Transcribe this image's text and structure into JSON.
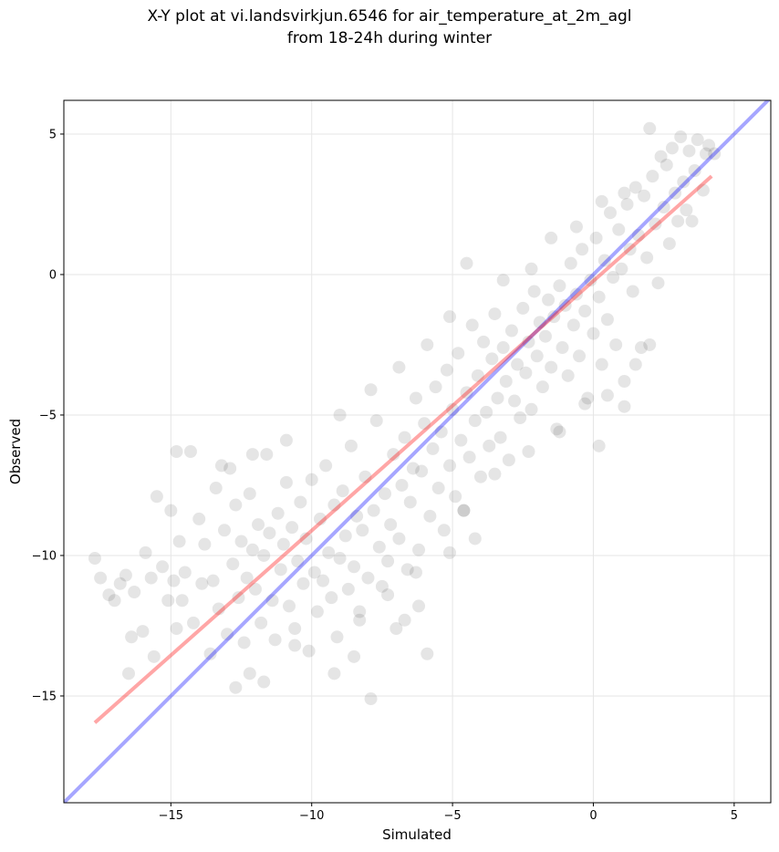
{
  "chart_data": {
    "type": "scatter",
    "title": "X-Y plot at vi.landsvirkjun.6546 for air_temperature_at_2m_agl",
    "subtitle": "from 18-24h during winter",
    "xlabel": "Simulated",
    "ylabel": "Observed",
    "xlim": [
      -18.8,
      6.3
    ],
    "ylim": [
      -18.8,
      6.2
    ],
    "xticks": [
      -15,
      -10,
      -5,
      0,
      5
    ],
    "yticks": [
      -15,
      -10,
      -5,
      0,
      5
    ],
    "xtick_labels": [
      "−15",
      "−10",
      "−5",
      "0",
      "5"
    ],
    "ytick_labels": [
      "−15",
      "−10",
      "−5",
      "0",
      "5"
    ],
    "grid": true,
    "marker_color": "#000000",
    "marker_alpha": 0.1,
    "reference_lines": [
      {
        "kind": "identity",
        "color": "#0000ff",
        "alpha": 0.35,
        "x": [
          -18.8,
          6.3
        ],
        "y": [
          -18.8,
          6.3
        ]
      },
      {
        "kind": "regression",
        "color": "#ff0000",
        "alpha": 0.35,
        "x": [
          -17.7,
          4.2
        ],
        "y": [
          -15.95,
          3.5
        ]
      }
    ],
    "points": [
      [
        -17.7,
        -10.1
      ],
      [
        -17.5,
        -10.8
      ],
      [
        -17.2,
        -11.4
      ],
      [
        -17.0,
        -11.6
      ],
      [
        -16.8,
        -11.0
      ],
      [
        -16.6,
        -10.7
      ],
      [
        -16.5,
        -14.2
      ],
      [
        -16.4,
        -12.9
      ],
      [
        -16.3,
        -11.3
      ],
      [
        -16.0,
        -12.7
      ],
      [
        -15.9,
        -9.9
      ],
      [
        -15.7,
        -10.8
      ],
      [
        -15.6,
        -13.6
      ],
      [
        -15.5,
        -7.9
      ],
      [
        -15.3,
        -10.4
      ],
      [
        -15.1,
        -11.6
      ],
      [
        -15.0,
        -8.4
      ],
      [
        -14.9,
        -10.9
      ],
      [
        -14.8,
        -12.6
      ],
      [
        -14.7,
        -9.5
      ],
      [
        -14.6,
        -11.6
      ],
      [
        -14.5,
        -10.6
      ],
      [
        -14.3,
        -6.3
      ],
      [
        -14.2,
        -12.4
      ],
      [
        -14.0,
        -8.7
      ],
      [
        -13.9,
        -11.0
      ],
      [
        -13.8,
        -9.6
      ],
      [
        -13.6,
        -13.5
      ],
      [
        -13.5,
        -10.9
      ],
      [
        -13.4,
        -7.6
      ],
      [
        -13.3,
        -11.9
      ],
      [
        -13.1,
        -9.1
      ],
      [
        -13.0,
        -12.8
      ],
      [
        -12.9,
        -6.9
      ],
      [
        -12.8,
        -10.3
      ],
      [
        -12.7,
        -8.2
      ],
      [
        -12.6,
        -11.5
      ],
      [
        -12.5,
        -9.5
      ],
      [
        -12.4,
        -13.1
      ],
      [
        -12.3,
        -10.8
      ],
      [
        -12.2,
        -7.8
      ],
      [
        -12.1,
        -9.8
      ],
      [
        -12.0,
        -11.2
      ],
      [
        -11.9,
        -8.9
      ],
      [
        -11.8,
        -12.4
      ],
      [
        -11.7,
        -10.0
      ],
      [
        -11.6,
        -6.4
      ],
      [
        -11.5,
        -9.2
      ],
      [
        -11.4,
        -11.6
      ],
      [
        -11.3,
        -13.0
      ],
      [
        -11.2,
        -8.5
      ],
      [
        -11.1,
        -10.5
      ],
      [
        -11.0,
        -9.6
      ],
      [
        -10.9,
        -7.4
      ],
      [
        -10.8,
        -11.8
      ],
      [
        -10.7,
        -9.0
      ],
      [
        -10.6,
        -12.6
      ],
      [
        -10.5,
        -10.2
      ],
      [
        -10.4,
        -8.1
      ],
      [
        -10.3,
        -11.0
      ],
      [
        -10.2,
        -9.4
      ],
      [
        -10.1,
        -13.4
      ],
      [
        -10.0,
        -7.3
      ],
      [
        -9.9,
        -10.6
      ],
      [
        -9.8,
        -12.0
      ],
      [
        -9.7,
        -8.7
      ],
      [
        -9.6,
        -10.9
      ],
      [
        -9.5,
        -6.8
      ],
      [
        -9.4,
        -9.9
      ],
      [
        -9.3,
        -11.5
      ],
      [
        -9.2,
        -8.2
      ],
      [
        -9.1,
        -12.9
      ],
      [
        -9.0,
        -10.1
      ],
      [
        -8.9,
        -7.7
      ],
      [
        -8.8,
        -9.3
      ],
      [
        -8.7,
        -11.2
      ],
      [
        -8.6,
        -6.1
      ],
      [
        -8.5,
        -10.4
      ],
      [
        -8.4,
        -8.6
      ],
      [
        -8.3,
        -12.3
      ],
      [
        -8.2,
        -9.1
      ],
      [
        -8.1,
        -7.2
      ],
      [
        -8.0,
        -10.8
      ],
      [
        -7.9,
        -15.1
      ],
      [
        -7.8,
        -8.4
      ],
      [
        -7.7,
        -5.2
      ],
      [
        -7.6,
        -9.7
      ],
      [
        -7.5,
        -11.1
      ],
      [
        -7.4,
        -7.8
      ],
      [
        -7.3,
        -10.2
      ],
      [
        -7.2,
        -8.9
      ],
      [
        -7.1,
        -6.4
      ],
      [
        -7.0,
        -12.6
      ],
      [
        -6.9,
        -9.4
      ],
      [
        -6.8,
        -7.5
      ],
      [
        -6.7,
        -5.8
      ],
      [
        -6.6,
        -10.5
      ],
      [
        -6.5,
        -8.1
      ],
      [
        -6.4,
        -6.9
      ],
      [
        -6.3,
        -4.4
      ],
      [
        -6.2,
        -9.8
      ],
      [
        -6.1,
        -7.0
      ],
      [
        -6.0,
        -5.3
      ],
      [
        -5.9,
        -13.5
      ],
      [
        -5.8,
        -8.6
      ],
      [
        -5.7,
        -6.2
      ],
      [
        -5.6,
        -4.0
      ],
      [
        -5.5,
        -7.6
      ],
      [
        -5.4,
        -5.6
      ],
      [
        -5.3,
        -9.1
      ],
      [
        -5.2,
        -3.4
      ],
      [
        -5.1,
        -6.8
      ],
      [
        -5.0,
        -4.8
      ],
      [
        -4.9,
        -7.9
      ],
      [
        -4.8,
        -2.8
      ],
      [
        -4.7,
        -5.9
      ],
      [
        -4.6,
        -8.4
      ],
      [
        -4.5,
        -4.2
      ],
      [
        -4.4,
        -6.5
      ],
      [
        -4.3,
        -1.8
      ],
      [
        -4.2,
        -5.2
      ],
      [
        -4.1,
        -3.6
      ],
      [
        -4.0,
        -7.2
      ],
      [
        -3.9,
        -2.4
      ],
      [
        -3.8,
        -4.9
      ],
      [
        -3.7,
        -6.1
      ],
      [
        -3.6,
        -3.0
      ],
      [
        -3.5,
        -1.4
      ],
      [
        -3.4,
        -4.4
      ],
      [
        -3.3,
        -5.8
      ],
      [
        -3.2,
        -2.6
      ],
      [
        -3.1,
        -3.8
      ],
      [
        -3.0,
        -6.6
      ],
      [
        -2.9,
        -2.0
      ],
      [
        -2.8,
        -4.5
      ],
      [
        -2.7,
        -3.2
      ],
      [
        -2.6,
        -5.1
      ],
      [
        -2.5,
        -1.2
      ],
      [
        -2.4,
        -3.5
      ],
      [
        -2.3,
        -2.4
      ],
      [
        -2.2,
        -4.8
      ],
      [
        -2.1,
        -0.6
      ],
      [
        -2.0,
        -2.9
      ],
      [
        -1.9,
        -1.7
      ],
      [
        -1.8,
        -4.0
      ],
      [
        -1.7,
        -2.2
      ],
      [
        -1.6,
        -0.9
      ],
      [
        -1.5,
        -3.3
      ],
      [
        -1.4,
        -1.5
      ],
      [
        -1.3,
        -5.5
      ],
      [
        -1.2,
        -0.4
      ],
      [
        -1.1,
        -2.6
      ],
      [
        -1.0,
        -1.1
      ],
      [
        -0.9,
        -3.6
      ],
      [
        -0.8,
        0.4
      ],
      [
        -0.7,
        -1.8
      ],
      [
        -0.6,
        -0.7
      ],
      [
        -0.5,
        -2.9
      ],
      [
        -0.4,
        0.9
      ],
      [
        -0.3,
        -1.3
      ],
      [
        -0.2,
        -4.4
      ],
      [
        -0.1,
        -0.2
      ],
      [
        0.0,
        -2.1
      ],
      [
        0.1,
        1.3
      ],
      [
        0.2,
        -0.8
      ],
      [
        0.3,
        -3.2
      ],
      [
        0.4,
        0.5
      ],
      [
        0.5,
        -1.6
      ],
      [
        0.6,
        2.2
      ],
      [
        0.7,
        -0.1
      ],
      [
        0.8,
        -2.5
      ],
      [
        0.9,
        1.6
      ],
      [
        1.0,
        0.2
      ],
      [
        1.1,
        -3.8
      ],
      [
        1.2,
        2.5
      ],
      [
        1.3,
        0.9
      ],
      [
        1.4,
        -0.6
      ],
      [
        1.5,
        3.1
      ],
      [
        1.6,
        1.4
      ],
      [
        1.7,
        -2.6
      ],
      [
        1.8,
        2.8
      ],
      [
        1.9,
        0.6
      ],
      [
        2.0,
        5.2
      ],
      [
        2.1,
        3.5
      ],
      [
        2.2,
        1.8
      ],
      [
        2.3,
        -0.3
      ],
      [
        2.4,
        4.2
      ],
      [
        2.5,
        2.4
      ],
      [
        2.6,
        3.9
      ],
      [
        2.7,
        1.1
      ],
      [
        2.8,
        4.5
      ],
      [
        2.9,
        2.9
      ],
      [
        3.0,
        1.9
      ],
      [
        3.1,
        4.9
      ],
      [
        3.2,
        3.3
      ],
      [
        3.3,
        2.3
      ],
      [
        3.4,
        4.4
      ],
      [
        3.5,
        1.9
      ],
      [
        3.6,
        3.7
      ],
      [
        3.7,
        4.8
      ],
      [
        3.9,
        3.0
      ],
      [
        4.0,
        4.3
      ],
      [
        4.1,
        4.6
      ],
      [
        4.3,
        4.3
      ],
      [
        -12.7,
        -14.7
      ],
      [
        -12.2,
        -14.2
      ],
      [
        -11.7,
        -14.5
      ],
      [
        -9.2,
        -14.2
      ],
      [
        -8.5,
        -13.6
      ],
      [
        -10.6,
        -13.2
      ],
      [
        -6.7,
        -12.3
      ],
      [
        -6.2,
        -11.8
      ],
      [
        -14.8,
        -6.3
      ],
      [
        -13.2,
        -6.8
      ],
      [
        -12.1,
        -6.4
      ],
      [
        -10.9,
        -5.9
      ],
      [
        -9.0,
        -5.0
      ],
      [
        -7.9,
        -4.1
      ],
      [
        -6.9,
        -3.3
      ],
      [
        -5.9,
        -2.5
      ],
      [
        -5.1,
        -1.5
      ],
      [
        -4.5,
        0.4
      ],
      [
        -3.2,
        -0.2
      ],
      [
        -2.2,
        0.2
      ],
      [
        -1.5,
        1.3
      ],
      [
        -0.6,
        1.7
      ],
      [
        0.3,
        2.6
      ],
      [
        1.1,
        2.9
      ],
      [
        -1.2,
        -5.6
      ],
      [
        -0.3,
        -4.6
      ],
      [
        0.2,
        -6.1
      ],
      [
        0.5,
        -4.3
      ],
      [
        1.1,
        -4.7
      ],
      [
        1.5,
        -3.2
      ],
      [
        2.0,
        -2.5
      ],
      [
        -2.3,
        -6.3
      ],
      [
        -3.5,
        -7.1
      ],
      [
        -4.6,
        -8.4
      ],
      [
        -4.2,
        -9.4
      ],
      [
        -5.1,
        -9.9
      ],
      [
        -6.3,
        -10.6
      ],
      [
        -7.3,
        -11.4
      ],
      [
        -8.3,
        -12.0
      ]
    ]
  }
}
